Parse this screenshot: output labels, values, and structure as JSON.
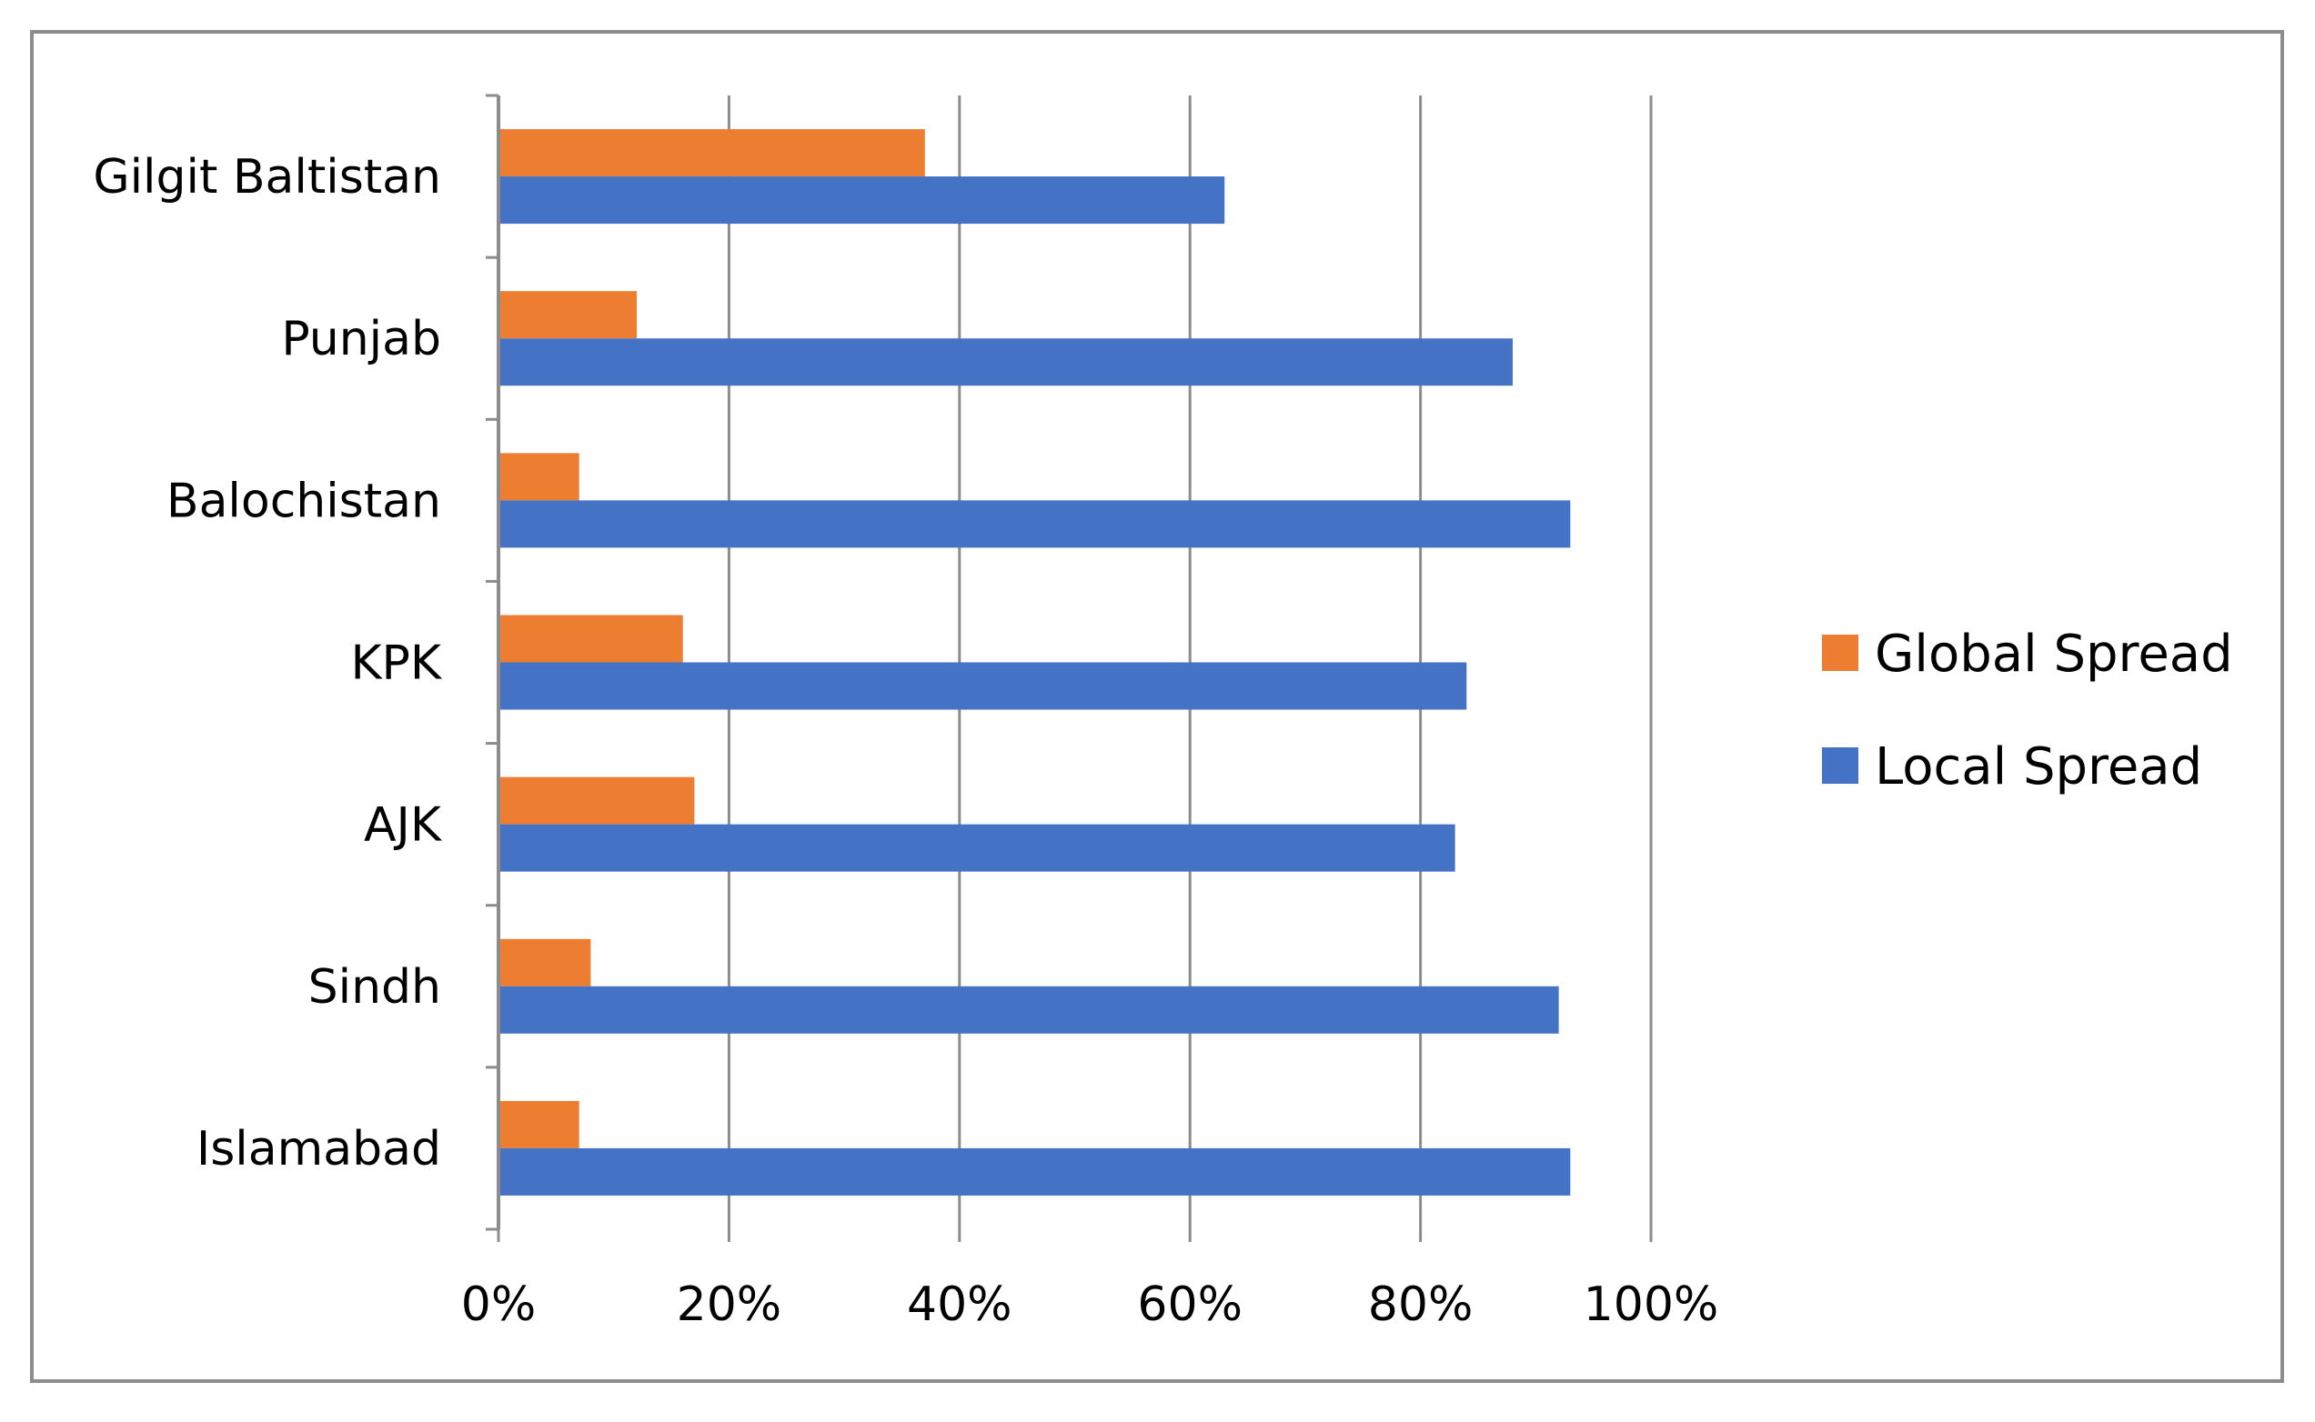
{
  "chart_data": {
    "type": "bar",
    "orientation": "horizontal",
    "categories": [
      "Gilgit Baltistan",
      "Punjab",
      "Balochistan",
      "KPK",
      "AJK",
      "Sindh",
      "Islamabad"
    ],
    "series": [
      {
        "name": "Global Spread",
        "color": "#ED7D31",
        "values": [
          37,
          12,
          7,
          16,
          17,
          8,
          7
        ]
      },
      {
        "name": "Local Spread",
        "color": "#4472C4",
        "values": [
          63,
          88,
          93,
          84,
          83,
          92,
          93
        ]
      }
    ],
    "xlim": [
      0,
      100
    ],
    "xticks": [
      "0%",
      "20%",
      "40%",
      "60%",
      "80%",
      "100%"
    ],
    "title": "",
    "xlabel": "",
    "ylabel": "",
    "grid": true,
    "legend_position": "right",
    "colors": {
      "gridline": "#8c8c8c",
      "axis": "#8c8c8c",
      "frame": "#8c8c8c"
    }
  }
}
